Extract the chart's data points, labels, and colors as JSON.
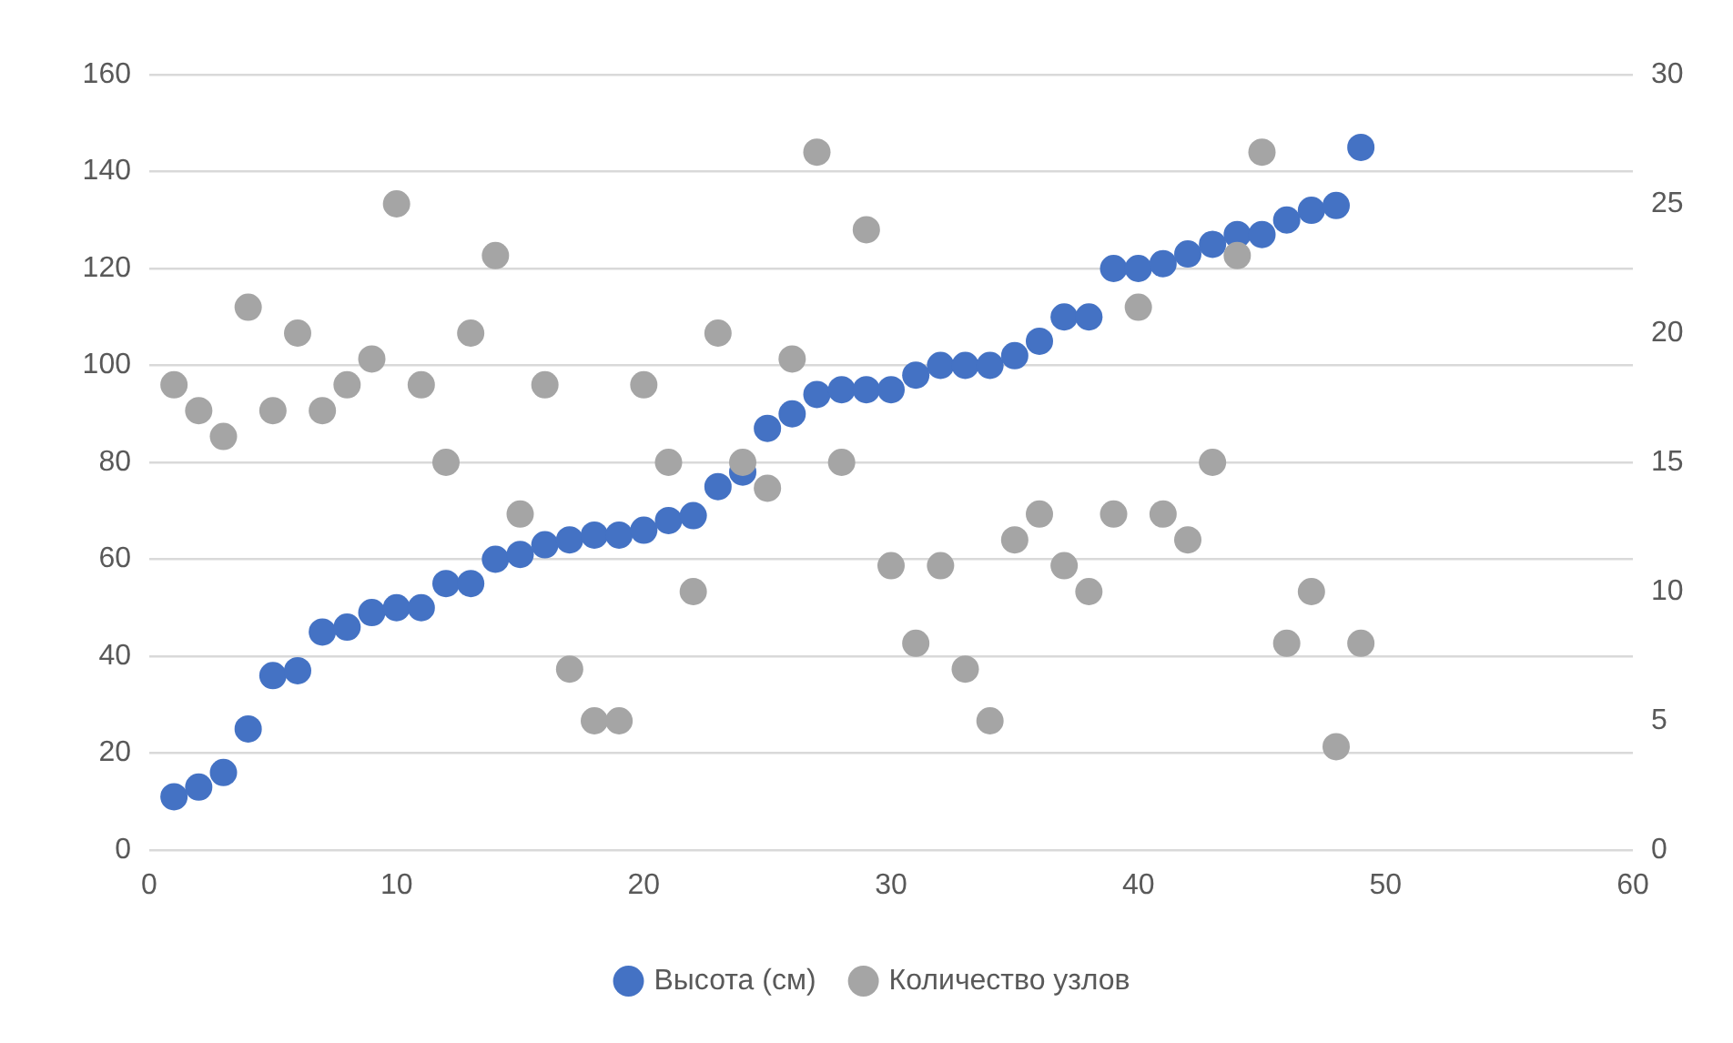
{
  "chart_data": {
    "type": "scatter",
    "x": [
      1,
      2,
      3,
      4,
      5,
      6,
      7,
      8,
      9,
      10,
      11,
      12,
      13,
      14,
      15,
      16,
      17,
      18,
      19,
      20,
      21,
      22,
      23,
      24,
      25,
      26,
      27,
      28,
      29,
      30,
      31,
      32,
      33,
      34,
      35,
      36,
      37,
      38,
      39,
      40,
      41,
      42,
      43,
      44,
      45,
      46,
      47,
      48,
      49
    ],
    "series": [
      {
        "name": "Высота (см)",
        "color": "#4472c4",
        "values": [
          11,
          13,
          16,
          25,
          36,
          37,
          45,
          46,
          49,
          50,
          50,
          55,
          55,
          60,
          61,
          63,
          64,
          65,
          65,
          66,
          68,
          69,
          75,
          78,
          87,
          90,
          94,
          95,
          95,
          95,
          98,
          100,
          100,
          100,
          102,
          105,
          110,
          110,
          120,
          120,
          121,
          123,
          125,
          127,
          127,
          130,
          132,
          133,
          145
        ]
      },
      {
        "name": "Количество узлов",
        "color": "#a5a5a5",
        "axis": "y2",
        "values": [
          18,
          17,
          16,
          21,
          17,
          20,
          17,
          18,
          19,
          25,
          18,
          15,
          20,
          23,
          13,
          18,
          7,
          5,
          5,
          18,
          15,
          10,
          20,
          15,
          14,
          19,
          27,
          15,
          24,
          11,
          8,
          11,
          7,
          5,
          12,
          13,
          11,
          10,
          13,
          21,
          13,
          12,
          15,
          23,
          27,
          8,
          10,
          4,
          8
        ]
      }
    ],
    "xlim": [
      0,
      60
    ],
    "xticks": [
      0,
      10,
      20,
      30,
      40,
      50,
      60
    ],
    "ylim": [
      0,
      160
    ],
    "yticks": [
      0,
      20,
      40,
      60,
      80,
      100,
      120,
      140,
      160
    ],
    "y2lim": [
      0,
      30
    ],
    "y2ticks": [
      0,
      5,
      10,
      15,
      20,
      25,
      30
    ],
    "grid": "y",
    "legend": "bottom",
    "marker": "circle"
  }
}
